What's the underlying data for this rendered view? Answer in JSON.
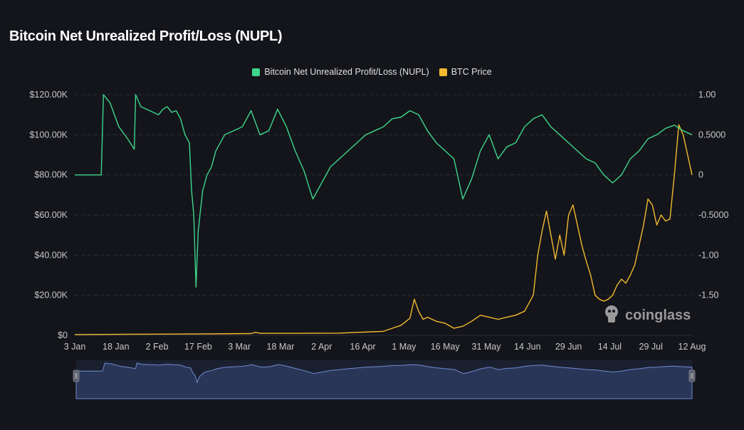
{
  "title": "Bitcoin Net Unrealized Profit/Loss (NUPL)",
  "watermark": "coinglass",
  "colors": {
    "background": "#14151a",
    "nupl": "#3dd68c",
    "btc": "#f3ba2f",
    "grid": "#2e3038",
    "axis_text": "#c8c8c8",
    "navigator_fill": "#2a3657",
    "navigator_line": "#6f8bd1"
  },
  "chart_data": {
    "type": "line",
    "title": "Bitcoin Net Unrealized Profit/Loss (NUPL)",
    "x_axis": {
      "tick_labels": [
        "3 Jan",
        "18 Jan",
        "2 Feb",
        "17 Feb",
        "3 Mar",
        "18 Mar",
        "2 Apr",
        "16 Apr",
        "1 May",
        "16 May",
        "31 May",
        "14 Jun",
        "29 Jun",
        "14 Jul",
        "29 Jul",
        "12 Aug"
      ]
    },
    "y_left": {
      "range": [
        0,
        120000
      ],
      "ticks": [
        0,
        20000,
        40000,
        60000,
        80000,
        100000,
        120000
      ],
      "tick_labels": [
        "$0",
        "$20.00K",
        "$40.00K",
        "$60.00K",
        "$80.00K",
        "$100.00K",
        "$120.00K"
      ]
    },
    "y_right": {
      "range": [
        -2.0,
        1.0
      ],
      "ticks": [
        -1.5,
        -1.0,
        -0.5,
        0,
        0.5,
        1.0
      ],
      "tick_labels": [
        "-1.50",
        "-1.00",
        "-0.5000",
        "0",
        "0.5000",
        "1.00"
      ]
    },
    "grid": true,
    "legend_position": "top-center",
    "series": [
      {
        "name": "Bitcoin Net Unrealized Profit/Loss (NUPL)",
        "axis": "right",
        "color": "#3dd68c",
        "x": [
          0,
          6,
          6.5,
          8,
          10,
          12,
          13.5,
          13.8,
          15,
          17,
          19,
          20,
          21,
          22,
          23,
          24,
          25,
          26,
          26.5,
          27,
          27.5,
          28,
          29,
          30,
          31,
          32,
          33,
          34,
          36,
          38,
          40,
          42,
          44,
          46,
          48,
          50,
          52,
          54,
          56,
          58,
          60,
          62,
          64,
          66,
          68,
          70,
          72,
          74,
          76,
          78,
          80,
          82,
          84,
          86,
          88,
          90,
          92,
          94,
          96,
          98,
          100,
          102,
          104,
          106,
          108,
          110,
          112,
          114,
          116,
          118,
          120,
          122,
          124,
          126,
          128,
          130,
          132,
          134,
          136,
          138,
          140
        ],
        "y": [
          0,
          0,
          1.0,
          0.9,
          0.6,
          0.45,
          0.32,
          1.0,
          0.85,
          0.8,
          0.75,
          0.82,
          0.85,
          0.78,
          0.8,
          0.7,
          0.5,
          0.4,
          -0.2,
          -0.5,
          -1.4,
          -0.7,
          -0.2,
          0,
          0.1,
          0.3,
          0.4,
          0.5,
          0.55,
          0.6,
          0.8,
          0.5,
          0.55,
          0.82,
          0.6,
          0.3,
          0.05,
          -0.3,
          -0.1,
          0.1,
          0.2,
          0.3,
          0.4,
          0.5,
          0.55,
          0.6,
          0.7,
          0.72,
          0.8,
          0.75,
          0.55,
          0.4,
          0.3,
          0.2,
          -0.3,
          -0.05,
          0.3,
          0.5,
          0.2,
          0.35,
          0.4,
          0.6,
          0.7,
          0.75,
          0.6,
          0.5,
          0.4,
          0.3,
          0.2,
          0.15,
          0.0,
          -0.1,
          0.0,
          0.2,
          0.3,
          0.45,
          0.5,
          0.58,
          0.62,
          0.55,
          0.5
        ]
      },
      {
        "name": "BTC Price",
        "axis": "left",
        "color": "#f3ba2f",
        "x": [
          0,
          10,
          20,
          30,
          40,
          41,
          42,
          50,
          60,
          70,
          72,
          74,
          76,
          77,
          78,
          79,
          80,
          82,
          84,
          86,
          88,
          90,
          92,
          94,
          96,
          98,
          100,
          102,
          104,
          105,
          106,
          107,
          108,
          109,
          110,
          111,
          112,
          113,
          114,
          115,
          116,
          117,
          118,
          119,
          120,
          121,
          122,
          123,
          124,
          125,
          126,
          127,
          128,
          129,
          130,
          131,
          132,
          133,
          134,
          135,
          136,
          137,
          138,
          139,
          140
        ],
        "y": [
          400,
          500,
          600,
          700,
          900,
          1500,
          1000,
          1000,
          1100,
          2000,
          3500,
          5000,
          8500,
          18000,
          12000,
          8000,
          9000,
          7000,
          6000,
          3500,
          4500,
          7000,
          10000,
          9000,
          8000,
          9000,
          10000,
          12000,
          20000,
          40000,
          52000,
          62000,
          50000,
          38000,
          50000,
          40000,
          60000,
          65000,
          55000,
          45000,
          37000,
          30000,
          20000,
          18000,
          17000,
          18000,
          20000,
          25000,
          28000,
          26000,
          30000,
          35000,
          45000,
          55000,
          68000,
          65000,
          55000,
          60000,
          57000,
          58000,
          80000,
          105000,
          100000,
          90000,
          80000
        ]
      }
    ],
    "navigator": {
      "series": "Bitcoin Net Unrealized Profit/Loss (NUPL)"
    }
  }
}
